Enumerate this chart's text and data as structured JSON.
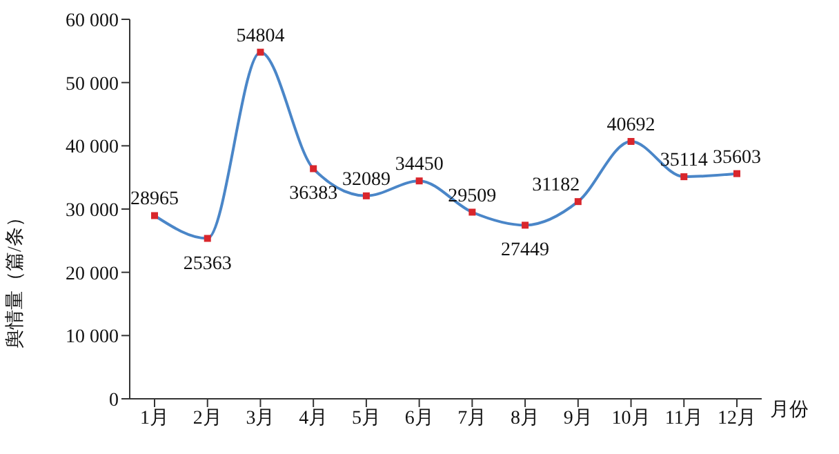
{
  "chart_data": {
    "type": "line",
    "xlabel": "月份",
    "ylabel": "舆情量（篇/条）",
    "categories": [
      "1月",
      "2月",
      "3月",
      "4月",
      "5月",
      "6月",
      "7月",
      "8月",
      "9月",
      "10月",
      "11月",
      "12月"
    ],
    "series": [
      {
        "color": "#4a86c8",
        "colors": [
          "#d9262c",
          "#d9262c",
          "#d9262c",
          "#d9262c",
          "#d9262c",
          "#d9262c",
          "#d9262c",
          "#d9262c",
          "#d9262c",
          "#d9262c",
          "#d9262c",
          "#d9262c"
        ],
        "values": [
          28965,
          25363,
          54804,
          36383,
          32089,
          34450,
          29509,
          27449,
          31182,
          40692,
          35114,
          35603
        ]
      }
    ],
    "ylim": [
      0,
      60000
    ],
    "yticks": [
      0,
      {
        "value": 10000,
        "label": "10 000"
      },
      {
        "value": 20000,
        "label": "20 000"
      },
      {
        "value": 30000,
        "label": "30 000"
      },
      {
        "value": 40000,
        "label": "40 000"
      },
      {
        "value": 50000,
        "label": "50 000"
      },
      {
        "value": 60000,
        "label": "60 000"
      }
    ],
    "grid": false,
    "legend": false,
    "marker": "square",
    "line_style": "solid",
    "data_labels": true
  }
}
